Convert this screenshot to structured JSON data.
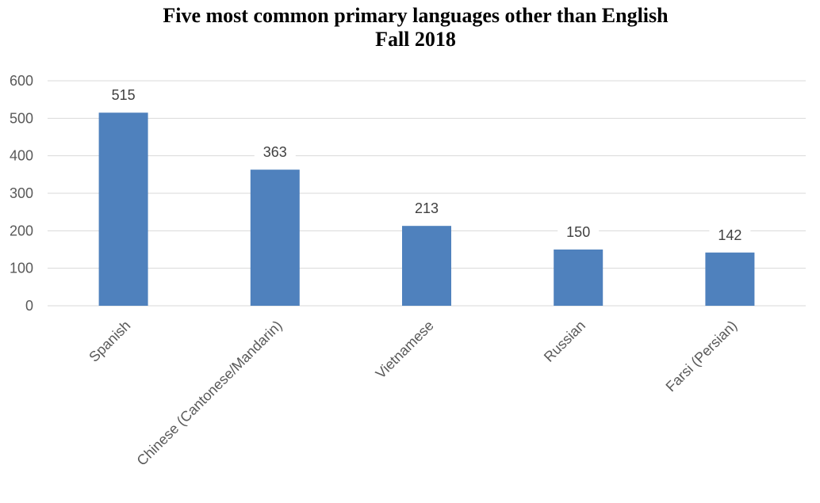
{
  "chart_data": {
    "type": "bar",
    "title_lines": [
      "Five most common primary languages other than English",
      "Fall 2018"
    ],
    "categories": [
      "Spanish",
      "Chinese (Cantonese/Mandarin)",
      "Vietnamese",
      "Russian",
      "Farsi (Persian)"
    ],
    "values": [
      515,
      363,
      213,
      150,
      142
    ],
    "data_labels": [
      "515",
      "363",
      "213",
      "150",
      "142"
    ],
    "y_ticks": [
      "0",
      "100",
      "200",
      "300",
      "400",
      "500",
      "600"
    ],
    "ylim": [
      0,
      600
    ],
    "grid": true,
    "legend": "none",
    "xlabel": "",
    "ylabel": "",
    "colors": {
      "bar": "#4F81BD",
      "grid": "#D9D9D9"
    }
  }
}
